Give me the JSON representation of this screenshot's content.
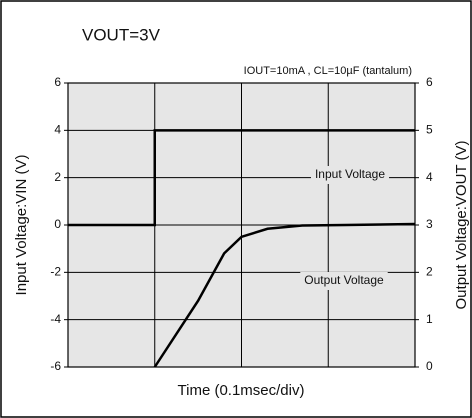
{
  "chart_data": {
    "type": "line",
    "title": "VOUT=3V",
    "subtitle": "IOUT=10mA , CL=10µF (tantalum)",
    "xlabel": "Time (0.1msec/div)",
    "ylabel": "Input Voltage:VIN (V)",
    "y2label": "Output Voltage:VOUT (V)",
    "xlim": [
      0,
      4
    ],
    "xgrid_step": 1,
    "ylim": [
      -6,
      6
    ],
    "yticks": [
      -6,
      -4,
      -2,
      0,
      2,
      4,
      6
    ],
    "y2lim": [
      0,
      6
    ],
    "y2ticks": [
      0,
      1,
      2,
      3,
      4,
      5,
      6
    ],
    "grid": true,
    "series": [
      {
        "name": "Input Voltage",
        "color": "#000000",
        "x": [
          0,
          1,
          1,
          4
        ],
        "values": [
          0,
          0,
          4,
          4
        ]
      },
      {
        "name": "Output Voltage",
        "color": "#000000",
        "axis": "y2",
        "x": [
          1,
          1.5,
          1.8,
          2.0,
          2.3,
          2.7,
          3.2,
          4
        ],
        "values": [
          0,
          1.4,
          2.4,
          2.75,
          2.92,
          2.99,
          3.0,
          3.02
        ]
      }
    ]
  }
}
